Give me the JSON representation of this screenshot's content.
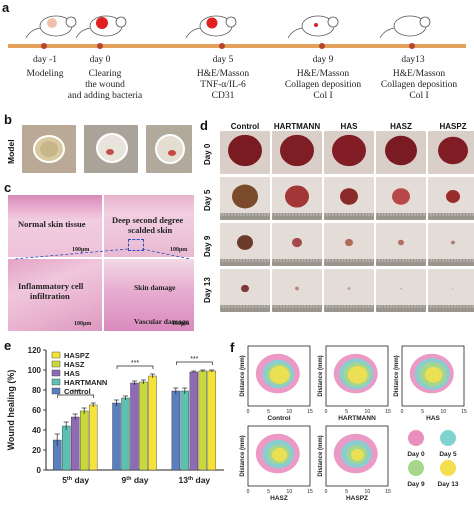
{
  "panel_labels": {
    "a": "a",
    "b": "b",
    "c": "c",
    "d": "d",
    "e": "e",
    "f": "f"
  },
  "timeline": {
    "events": [
      {
        "day": "day -1",
        "desc": [
          "Modeling"
        ]
      },
      {
        "day": "day 0",
        "desc": [
          "Clearing",
          "the wound",
          "and adding bacteria"
        ]
      },
      {
        "day": "day 5",
        "desc": [
          "H&E/Masson",
          "TNF-α/IL-6",
          "CD31"
        ]
      },
      {
        "day": "day 9",
        "desc": [
          "H&E/Masson",
          "Collagen deposition",
          "Col I"
        ]
      },
      {
        "day": "day13",
        "desc": [
          "H&E/Masson",
          "Collagen deposition",
          "Col I"
        ]
      }
    ],
    "colors": {
      "line": "#e4a15b",
      "dot": "#b5462a",
      "mark_light": "#f2b5a4",
      "mark_red": "#e02020"
    }
  },
  "model_label": "Model",
  "histology": {
    "normal": "Normal skin tissue",
    "deep": [
      "Deep second degree",
      "scalded skin"
    ],
    "inflam": [
      "Inflammatory cell",
      "infiltration"
    ],
    "skin_damage": "Skin damage",
    "vascular": "Vascular damage",
    "scale": "100μm",
    "scale2": "100μm",
    "scale3": "100μm",
    "scale4": "100μm"
  },
  "photo_grid": {
    "columns": [
      "Control",
      "HARTMANN",
      "HAS",
      "HASZ",
      "HASPZ"
    ],
    "rows": [
      "Day 0",
      "Day 5",
      "Day 9",
      "Day 13"
    ]
  },
  "chart_data": {
    "type": "bar",
    "ylabel": "Wound healing (%)",
    "ylim": [
      0,
      120
    ],
    "yticks": [
      0,
      20,
      40,
      60,
      80,
      100,
      120
    ],
    "categories": [
      {
        "main": "5",
        "sup": "th",
        "rest": " day"
      },
      {
        "main": "9",
        "sup": "th",
        "rest": " day"
      },
      {
        "main": "13",
        "sup": "th",
        "rest": " day"
      }
    ],
    "legend": [
      "HASPZ",
      "HASZ",
      "HAS",
      "HARTMANN",
      "Control"
    ],
    "series": [
      {
        "name": "Control",
        "color": "#5a7fbf",
        "values": [
          30,
          67,
          79
        ],
        "errors": [
          6,
          3,
          3
        ]
      },
      {
        "name": "HARTMANN",
        "color": "#5cc0b2",
        "values": [
          44,
          72,
          79
        ],
        "errors": [
          4,
          2,
          3
        ]
      },
      {
        "name": "HAS",
        "color": "#8f6bb5",
        "values": [
          53,
          87,
          98
        ],
        "errors": [
          3,
          2,
          1
        ]
      },
      {
        "name": "HASZ",
        "color": "#c9d93c",
        "values": [
          59,
          88,
          99
        ],
        "errors": [
          3,
          2,
          1
        ]
      },
      {
        "name": "HASPZ",
        "color": "#f5e23a",
        "values": [
          65,
          94,
          99
        ],
        "errors": [
          2,
          2,
          1
        ]
      }
    ],
    "significance": "***"
  },
  "traces": {
    "ylabel": "Distance (mm)",
    "panels": [
      "Control",
      "HARTMANN",
      "HAS",
      "HASZ",
      "HASPZ"
    ],
    "ticks": [
      "0",
      "5",
      "10",
      "15"
    ],
    "legend": [
      {
        "label": "Day 0",
        "color": "#e98fc0"
      },
      {
        "label": "Day 5",
        "color": "#7fd3d0"
      },
      {
        "label": "Day 9",
        "color": "#a6d68a"
      },
      {
        "label": "Day 13",
        "color": "#f3e04c"
      }
    ]
  }
}
